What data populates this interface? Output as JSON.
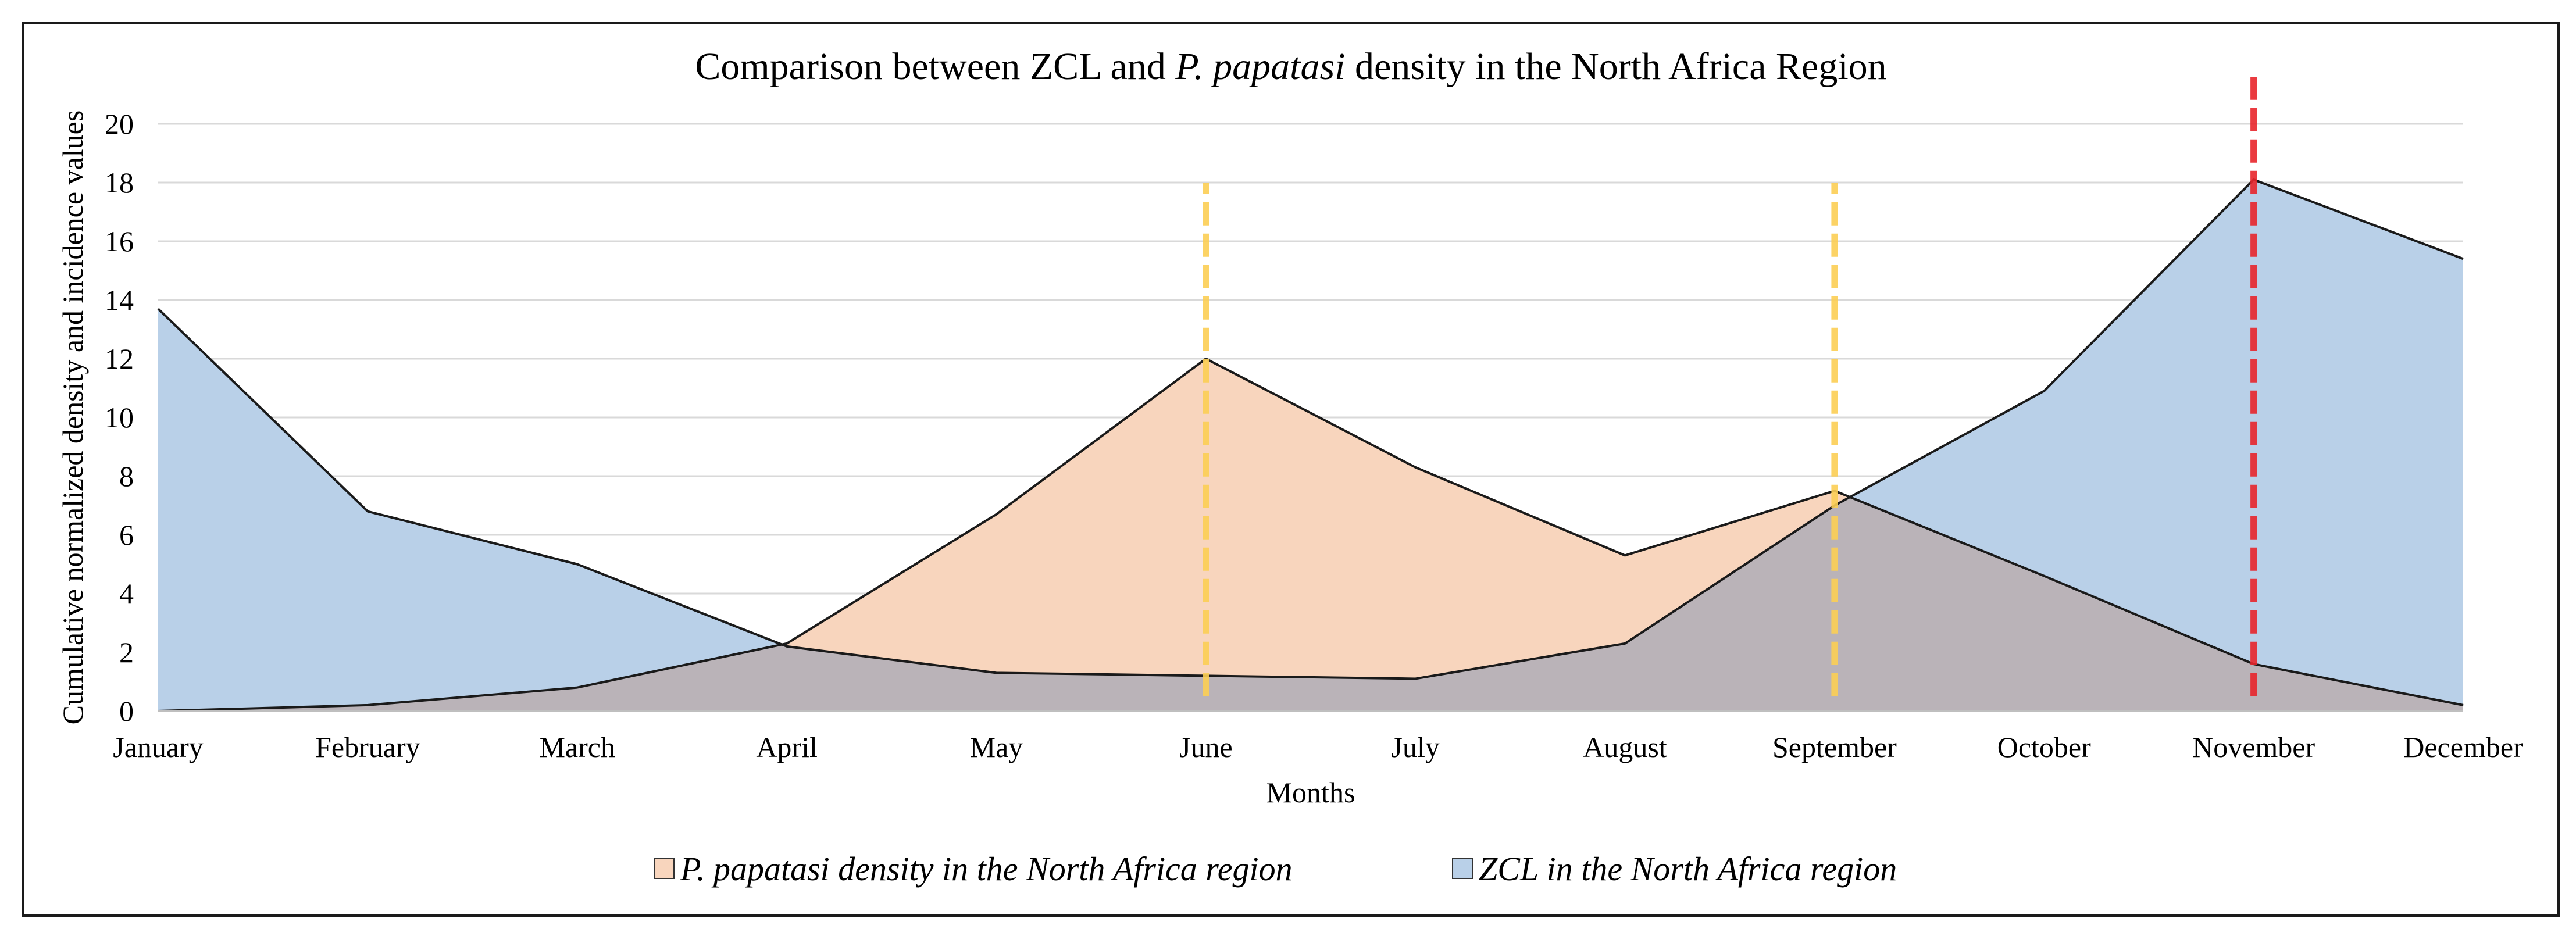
{
  "chart_data": {
    "type": "area",
    "title_parts": {
      "before": "Comparison between ZCL and ",
      "species": "P. papatasi",
      "after": " density in the North Africa Region"
    },
    "xlabel": "Months",
    "ylabel": "Cumulative normalized density and incidence values",
    "categories": [
      "January",
      "February",
      "March",
      "April",
      "May",
      "June",
      "July",
      "August",
      "September",
      "October",
      "November",
      "December"
    ],
    "ylim": [
      0,
      20
    ],
    "yticks": [
      "0",
      "2",
      "4",
      "6",
      "8",
      "10",
      "12",
      "14",
      "16",
      "18",
      "20"
    ],
    "grid": true,
    "series": [
      {
        "name": "P. papatasi density in the North Africa region",
        "values": [
          0,
          0.2,
          0.8,
          2.3,
          6.7,
          12.0,
          8.3,
          5.3,
          7.5,
          4.6,
          1.6,
          0.2
        ],
        "fill": "#f8d5bd"
      },
      {
        "name": "ZCL in the North Africa region",
        "values": [
          13.7,
          6.8,
          5.0,
          2.2,
          1.3,
          1.2,
          1.1,
          2.3,
          7.0,
          10.9,
          18.1,
          15.4
        ],
        "fill": "#b9d0e8"
      }
    ],
    "overlap_fill": "#bab3b8",
    "reference_lines": [
      {
        "category": "June",
        "from": 0.5,
        "to": 18,
        "color": "#fccf55"
      },
      {
        "category": "September",
        "from": 0.5,
        "to": 18,
        "color": "#fccf55"
      },
      {
        "category": "November",
        "from": 0.5,
        "to": 21.6,
        "color": "#e8262c"
      }
    ],
    "legend": {
      "position": "bottom-center",
      "items": [
        {
          "label": "P. papatasi density in the North Africa region",
          "color": "#f8d5bd"
        },
        {
          "label": "ZCL in the North Africa region",
          "color": "#b9d0e8"
        }
      ]
    }
  }
}
